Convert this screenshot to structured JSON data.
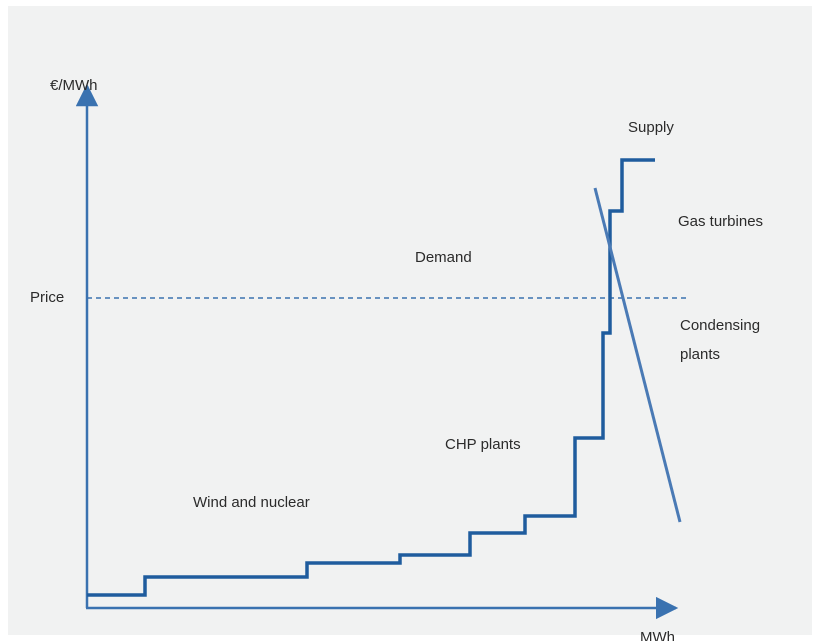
{
  "axes": {
    "y_label": "€/MWh",
    "x_label": "MWh"
  },
  "price": "Price",
  "labels": {
    "supply": "Supply",
    "demand": "Demand",
    "gas_turbines": "Gas turbines",
    "condensing_plants": [
      "Condensing",
      "plants"
    ],
    "chp_plants": "CHP plants",
    "wind_and_nuclear": "Wind and nuclear"
  }
}
